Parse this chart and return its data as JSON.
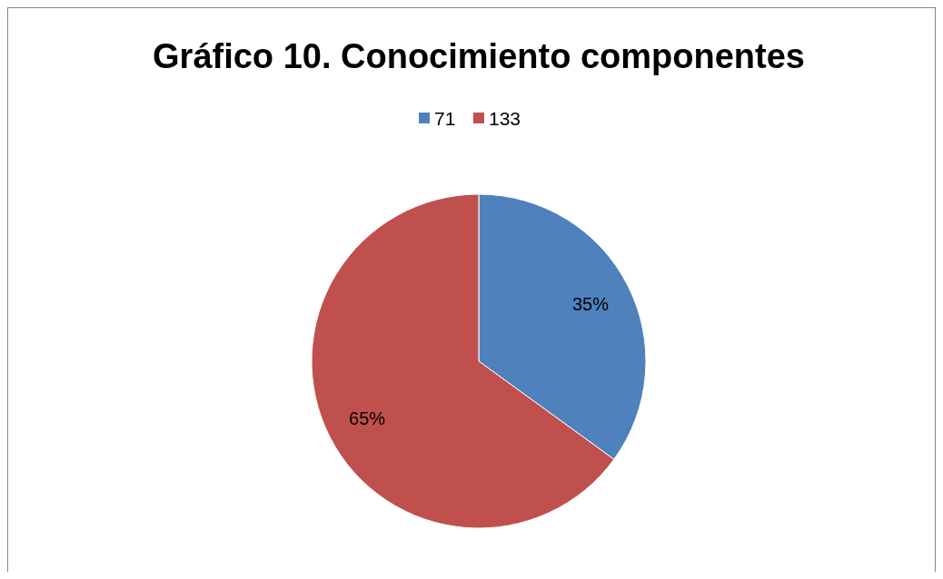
{
  "chart_data": {
    "type": "pie",
    "title": "Gráfico 10. Conocimiento componentes",
    "categories": [
      "71",
      "133"
    ],
    "values": [
      35,
      65
    ],
    "colors": [
      "#4f81bd",
      "#c0504d"
    ],
    "value_labels": [
      "35%",
      "65%"
    ],
    "legend": "top"
  }
}
